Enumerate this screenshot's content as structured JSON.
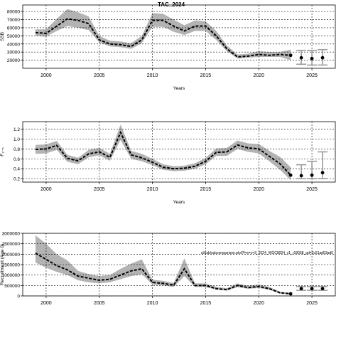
{
  "figure": {
    "title": "TAC_2024",
    "watermark": "sl/ssb/ssbcomparison.plot?f=s=c=3_2024_WGC8024_v1_r18058_gd=3c51ad53ad0"
  },
  "chart_data": [
    {
      "type": "line",
      "ylabel": "SSB",
      "xlabel": "Years",
      "xlim": [
        1997.8,
        2027.2
      ],
      "ylim": [
        10000,
        88000
      ],
      "xticks": [
        2000,
        2005,
        2010,
        2015,
        2020,
        2025
      ],
      "yticks": [
        20000,
        30000,
        40000,
        50000,
        60000,
        70000,
        80000
      ],
      "grid": true,
      "x": [
        1999,
        2000,
        2001,
        2002,
        2003,
        2004,
        2005,
        2006,
        2007,
        2008,
        2009,
        2010,
        2011,
        2012,
        2013,
        2014,
        2015,
        2016,
        2017,
        2018,
        2019,
        2020,
        2021,
        2022,
        2023
      ],
      "estimate": [
        54000,
        53000,
        62000,
        71000,
        69000,
        65000,
        45000,
        40000,
        39000,
        37000,
        45000,
        69000,
        69000,
        62000,
        56000,
        62000,
        62000,
        50000,
        34000,
        24000,
        25000,
        27000,
        26000,
        27000,
        26000
      ],
      "lower": [
        50000,
        49000,
        56000,
        62000,
        60000,
        57000,
        42000,
        37000,
        36000,
        34000,
        41000,
        61000,
        61000,
        55000,
        51000,
        56000,
        56000,
        45000,
        31000,
        22000,
        23000,
        24000,
        24000,
        24000,
        20000
      ],
      "upper": [
        58000,
        58000,
        71000,
        83000,
        79000,
        74000,
        50000,
        44000,
        43000,
        41000,
        50000,
        78000,
        77000,
        70000,
        63000,
        69000,
        68000,
        56000,
        38000,
        27000,
        28000,
        31000,
        30000,
        30000,
        33000
      ],
      "projection": {
        "x": [
          2024,
          2025,
          2026
        ],
        "values": [
          23000,
          22000,
          23000
        ],
        "lower": [
          15000,
          14000,
          14000
        ],
        "upper": [
          32000,
          32000,
          33000
        ]
      }
    },
    {
      "type": "line",
      "ylabel": "F₂₋₅",
      "xlabel": "Years",
      "xlim": [
        1997.8,
        2027.2
      ],
      "ylim": [
        0.13,
        1.35
      ],
      "xticks": [
        2000,
        2005,
        2010,
        2015,
        2020,
        2025
      ],
      "yticks": [
        0.2,
        0.4,
        0.6,
        0.8,
        1.0,
        1.2
      ],
      "yticklabels": [
        "0.2",
        "0.4",
        "0.6",
        "0.8",
        "1.0",
        "1.2"
      ],
      "grid": true,
      "x": [
        1999,
        2000,
        2001,
        2002,
        2003,
        2004,
        2005,
        2006,
        2007,
        2008,
        2009,
        2010,
        2011,
        2012,
        2013,
        2014,
        2015,
        2016,
        2017,
        2018,
        2019,
        2020,
        2021,
        2022,
        2023
      ],
      "estimate": [
        0.79,
        0.8,
        0.87,
        0.61,
        0.56,
        0.7,
        0.74,
        0.63,
        1.13,
        0.68,
        0.62,
        0.53,
        0.43,
        0.4,
        0.41,
        0.45,
        0.55,
        0.73,
        0.74,
        0.88,
        0.82,
        0.8,
        0.65,
        0.5,
        0.27
      ],
      "lower": [
        0.7,
        0.71,
        0.78,
        0.54,
        0.49,
        0.63,
        0.67,
        0.56,
        0.98,
        0.6,
        0.55,
        0.47,
        0.38,
        0.35,
        0.36,
        0.4,
        0.49,
        0.66,
        0.66,
        0.8,
        0.74,
        0.71,
        0.55,
        0.38,
        0.17
      ],
      "upper": [
        0.88,
        0.89,
        0.96,
        0.68,
        0.62,
        0.78,
        0.82,
        0.7,
        1.29,
        0.76,
        0.7,
        0.6,
        0.49,
        0.45,
        0.46,
        0.51,
        0.62,
        0.81,
        0.82,
        0.97,
        0.91,
        0.9,
        0.76,
        0.64,
        0.43
      ],
      "projection": {
        "x": [
          2024,
          2025,
          2026
        ],
        "values": [
          0.26,
          0.27,
          0.32
        ],
        "lower": [
          0.2,
          0.2,
          0.2
        ],
        "upper": [
          0.48,
          0.55,
          0.74
        ]
      }
    },
    {
      "type": "line",
      "ylabel": "Recruitment (Age 0)",
      "xlabel": "",
      "xlim": [
        1997.8,
        2027.2
      ],
      "ylim": [
        0,
        3000000
      ],
      "xticks": [
        2000,
        2005,
        2010,
        2015,
        2020,
        2025
      ],
      "yticks": [
        0,
        500000,
        1000000,
        1500000,
        2000000,
        2500000,
        3000000
      ],
      "grid": true,
      "x": [
        1999,
        2000,
        2001,
        2002,
        2003,
        2004,
        2005,
        2006,
        2007,
        2008,
        2009,
        2010,
        2011,
        2012,
        2013,
        2014,
        2015,
        2016,
        2017,
        2018,
        2019,
        2020,
        2021,
        2022,
        2023
      ],
      "estimate": [
        2050000,
        1750000,
        1450000,
        1250000,
        950000,
        850000,
        750000,
        800000,
        1000000,
        1200000,
        1300000,
        650000,
        600000,
        520000,
        1300000,
        500000,
        500000,
        350000,
        300000,
        500000,
        400000,
        450000,
        350000,
        150000,
        100000
      ],
      "lower": [
        1600000,
        1350000,
        1150000,
        1000000,
        750000,
        650000,
        600000,
        650000,
        800000,
        950000,
        1050000,
        550000,
        500000,
        430000,
        950000,
        430000,
        430000,
        300000,
        250000,
        420000,
        340000,
        380000,
        290000,
        110000,
        70000
      ],
      "upper": [
        2900000,
        2500000,
        2000000,
        1700000,
        1200000,
        1050000,
        950000,
        1000000,
        1300000,
        1550000,
        1750000,
        780000,
        720000,
        620000,
        1800000,
        600000,
        600000,
        430000,
        370000,
        600000,
        480000,
        550000,
        430000,
        200000,
        150000
      ],
      "projection": {
        "x": [
          2024,
          2025,
          2026
        ],
        "values": [
          350000,
          350000,
          350000
        ],
        "lower": [
          270000,
          270000,
          270000
        ],
        "upper": [
          450000,
          450000,
          450000
        ]
      }
    }
  ]
}
